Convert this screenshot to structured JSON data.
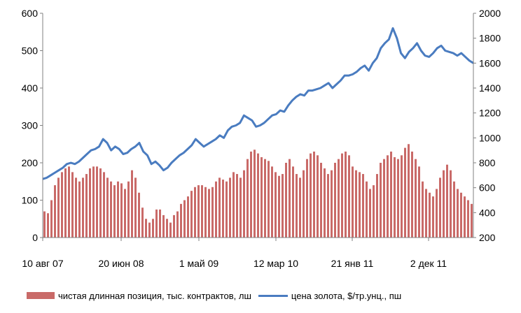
{
  "colors": {
    "bars": "#c0504d",
    "line": "#4a7cc0",
    "axis": "#808080"
  },
  "chart_data": {
    "type": "bar+line",
    "x_ticks": [
      "10 авг 07",
      "20 июн 08",
      "1 май 09",
      "12 мар 10",
      "21 янв 11",
      "2 дек 11"
    ],
    "y_left": {
      "ticks": [
        0,
        100,
        200,
        300,
        400,
        500,
        600
      ],
      "lim": [
        0,
        600
      ]
    },
    "y_right": {
      "ticks": [
        200,
        400,
        600,
        800,
        1000,
        1200,
        1400,
        1600,
        1800,
        2000
      ],
      "lim": [
        200,
        2000
      ]
    },
    "grid": false,
    "legend_position": "bottom",
    "series": [
      {
        "name": "чистая длинная позиция, тыс. контрактов, лш",
        "type": "bar",
        "axis": "left",
        "values": [
          70,
          65,
          100,
          140,
          160,
          175,
          185,
          190,
          175,
          160,
          150,
          160,
          170,
          185,
          190,
          190,
          185,
          175,
          160,
          150,
          140,
          150,
          145,
          130,
          150,
          180,
          160,
          120,
          80,
          50,
          40,
          50,
          75,
          75,
          60,
          50,
          40,
          60,
          70,
          90,
          100,
          110,
          125,
          135,
          140,
          140,
          135,
          130,
          135,
          150,
          160,
          155,
          150,
          160,
          175,
          170,
          160,
          180,
          210,
          230,
          235,
          225,
          215,
          210,
          205,
          190,
          175,
          165,
          170,
          200,
          210,
          190,
          170,
          160,
          180,
          210,
          225,
          230,
          220,
          200,
          185,
          170,
          180,
          200,
          210,
          225,
          230,
          220,
          190,
          180,
          175,
          170,
          150,
          130,
          140,
          170,
          200,
          210,
          220,
          230,
          215,
          210,
          220,
          240,
          250,
          230,
          210,
          190,
          150,
          130,
          120,
          110,
          130,
          160,
          180,
          195,
          180,
          150,
          130,
          120,
          110,
          100,
          90
        ]
      },
      {
        "name": "цена золота, $/тр.унц., пш",
        "type": "line",
        "axis": "right",
        "values": [
          670,
          680,
          700,
          720,
          740,
          760,
          790,
          800,
          790,
          810,
          840,
          870,
          900,
          910,
          930,
          990,
          960,
          900,
          930,
          910,
          870,
          880,
          910,
          930,
          960,
          890,
          860,
          790,
          810,
          780,
          740,
          760,
          800,
          830,
          860,
          880,
          910,
          940,
          990,
          960,
          930,
          950,
          970,
          990,
          1020,
          1000,
          1060,
          1090,
          1100,
          1120,
          1180,
          1160,
          1140,
          1090,
          1100,
          1120,
          1150,
          1180,
          1190,
          1220,
          1210,
          1260,
          1300,
          1330,
          1350,
          1340,
          1380,
          1380,
          1390,
          1400,
          1420,
          1440,
          1400,
          1430,
          1460,
          1500,
          1500,
          1510,
          1530,
          1560,
          1580,
          1540,
          1600,
          1640,
          1720,
          1760,
          1790,
          1880,
          1800,
          1680,
          1640,
          1690,
          1720,
          1760,
          1700,
          1660,
          1650,
          1680,
          1720,
          1740,
          1700,
          1690,
          1680,
          1660,
          1680,
          1650,
          1620,
          1600
        ]
      }
    ]
  }
}
